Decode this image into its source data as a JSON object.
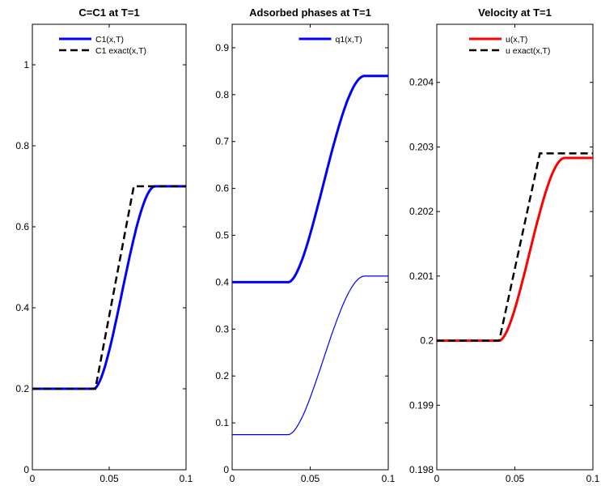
{
  "chart_data": [
    {
      "type": "line",
      "title": "C=C1 at T=1",
      "xlim": [
        0,
        0.1
      ],
      "ylim": [
        0,
        1.1
      ],
      "xticks": [
        "0",
        "0.05",
        "0.1"
      ],
      "yticks": [
        "0",
        "0.2",
        "0.4",
        "0.6",
        "0.8",
        "1"
      ],
      "grid": false,
      "legend_position": "top",
      "series": [
        {
          "name": "C1(x,T)",
          "color": "#0000ff",
          "style": "solid-thick",
          "low": 0.2,
          "high": 0.7,
          "x_start": 0.04,
          "x_end": 0.08,
          "x": [
            0,
            0.04,
            0.045,
            0.05,
            0.055,
            0.06,
            0.065,
            0.07,
            0.075,
            0.08,
            0.1
          ],
          "y": [
            0.2,
            0.2,
            0.25,
            0.35,
            0.46,
            0.56,
            0.64,
            0.685,
            0.698,
            0.7,
            0.7
          ]
        },
        {
          "name": "C1 exact(x,T)",
          "color": "#000000",
          "style": "dashed",
          "low": 0.2,
          "high": 0.7,
          "x": [
            0,
            0.041,
            0.066,
            0.1
          ],
          "y": [
            0.2,
            0.2,
            0.7,
            0.7
          ]
        }
      ]
    },
    {
      "type": "line",
      "title": "Adsorbed phases at T=1",
      "xlim": [
        0,
        0.1
      ],
      "ylim": [
        0,
        0.95
      ],
      "xticks": [
        "0",
        "0.05",
        "0.1"
      ],
      "yticks": [
        "0",
        "0.1",
        "0.2",
        "0.3",
        "0.4",
        "0.5",
        "0.6",
        "0.7",
        "0.8",
        "0.9"
      ],
      "grid": false,
      "legend_position": "top-right",
      "series": [
        {
          "name": "q1(x,T)",
          "color": "#0000ff",
          "style": "solid-thick",
          "low": 0.4,
          "high": 0.84,
          "x_start": 0.036,
          "x_end": 0.085,
          "x": [
            0,
            0.036,
            0.042,
            0.05,
            0.06,
            0.07,
            0.08,
            0.085,
            0.1
          ],
          "y": [
            0.4,
            0.4,
            0.48,
            0.6,
            0.73,
            0.81,
            0.835,
            0.84,
            0.84
          ]
        },
        {
          "name": "",
          "color": "#0000ff",
          "style": "solid-thin",
          "low": 0.075,
          "high": 0.413,
          "x_start": 0.036,
          "x_end": 0.085,
          "x": [
            0,
            0.036,
            0.042,
            0.05,
            0.06,
            0.07,
            0.08,
            0.085,
            0.1
          ],
          "y": [
            0.075,
            0.075,
            0.11,
            0.2,
            0.31,
            0.39,
            0.41,
            0.413,
            0.413
          ]
        }
      ]
    },
    {
      "type": "line",
      "title": "Velocity at T=1",
      "xlim": [
        0,
        0.1
      ],
      "ylim": [
        0.198,
        0.2049
      ],
      "xticks": [
        "0",
        "0.05",
        "0.1"
      ],
      "yticks": [
        "0.198",
        "0.199",
        "0.2",
        "0.201",
        "0.202",
        "0.203",
        "0.204"
      ],
      "grid": false,
      "legend_position": "top",
      "series": [
        {
          "name": "u(x,T)",
          "color": "#ff0000",
          "style": "solid-thick",
          "low": 0.2,
          "high": 0.20283,
          "x_start": 0.04,
          "x_end": 0.082,
          "x": [
            0,
            0.04,
            0.045,
            0.05,
            0.055,
            0.06,
            0.065,
            0.07,
            0.075,
            0.082,
            0.1
          ],
          "y": [
            0.2,
            0.2,
            0.2003,
            0.201,
            0.2017,
            0.2023,
            0.20265,
            0.2028,
            0.20283,
            0.20283,
            0.20283
          ]
        },
        {
          "name": "u exact(x,T)",
          "color": "#000000",
          "style": "dashed",
          "low": 0.2,
          "high": 0.2029,
          "x": [
            0,
            0.04,
            0.066,
            0.1
          ],
          "y": [
            0.2,
            0.2,
            0.2029,
            0.2029
          ]
        }
      ]
    }
  ]
}
